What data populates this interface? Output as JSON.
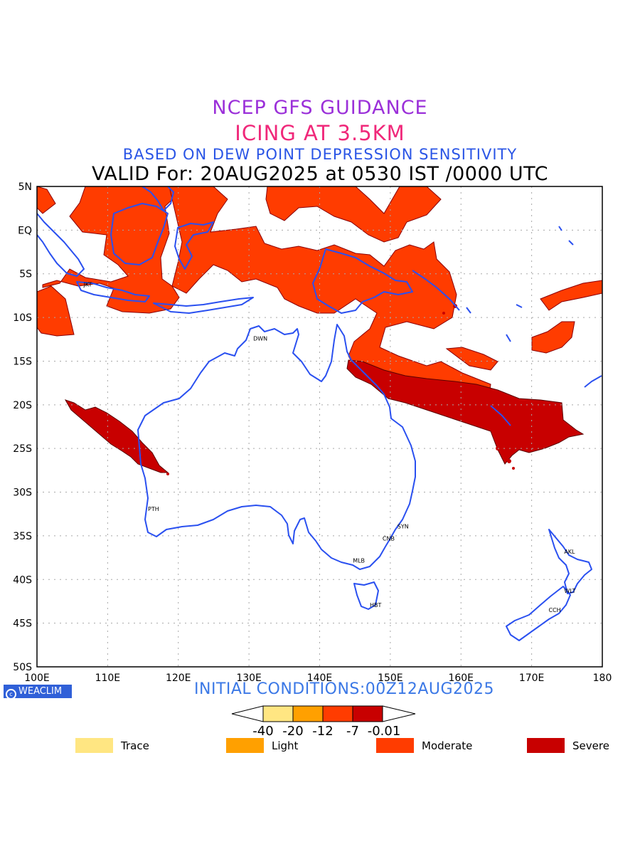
{
  "header": {
    "line1": "NCEP GFS GUIDANCE",
    "line2": "ICING AT 3.5KM",
    "line3": "BASED ON DEW POINT DEPRESSION SENSITIVITY",
    "line4": "VALID For: 20AUG2025 at 0530 IST /0000 UTC"
  },
  "map": {
    "lat_labels": [
      "5N",
      "EQ",
      "5S",
      "10S",
      "15S",
      "20S",
      "25S",
      "30S",
      "35S",
      "40S",
      "45S",
      "50S"
    ],
    "lon_labels": [
      "100E",
      "110E",
      "120E",
      "130E",
      "140E",
      "150E",
      "160E",
      "170E",
      "180"
    ],
    "lat_range": [
      5,
      -50
    ],
    "lon_range": [
      100,
      180
    ],
    "grid": true,
    "stations": [
      {
        "name": "JKT",
        "lon": 106.8,
        "lat": -6.2
      },
      {
        "name": "DWN",
        "lon": 130.8,
        "lat": -12.4
      },
      {
        "name": "PTH",
        "lon": 115.9,
        "lat": -31.9
      },
      {
        "name": "SYN",
        "lon": 151.2,
        "lat": -33.9
      },
      {
        "name": "CNB",
        "lon": 149.1,
        "lat": -35.3
      },
      {
        "name": "MLB",
        "lon": 144.9,
        "lat": -37.8
      },
      {
        "name": "HBT",
        "lon": 147.3,
        "lat": -42.9
      },
      {
        "name": "AKL",
        "lon": 174.8,
        "lat": -36.8
      },
      {
        "name": "WLT",
        "lon": 174.8,
        "lat": -41.3
      },
      {
        "name": "CCH",
        "lon": 172.6,
        "lat": -43.5
      }
    ],
    "coastline_color": "#2a50f0"
  },
  "footer": {
    "badge": "WEACLIM",
    "initial_conditions": "INITIAL CONDITIONS:00Z12AUG2025"
  },
  "colorbar": {
    "boundaries": [
      "-40",
      "-20",
      "-12",
      "-7",
      "-0.01"
    ],
    "colors": [
      "#ffe682",
      "#ffa000",
      "#ff3c00",
      "#c80000"
    ]
  },
  "legend": [
    {
      "label": "Trace",
      "color": "#ffe682"
    },
    {
      "label": "Light",
      "color": "#ffa000"
    },
    {
      "label": "Moderate",
      "color": "#ff3c00"
    },
    {
      "label": "Severe",
      "color": "#c80000"
    }
  ]
}
